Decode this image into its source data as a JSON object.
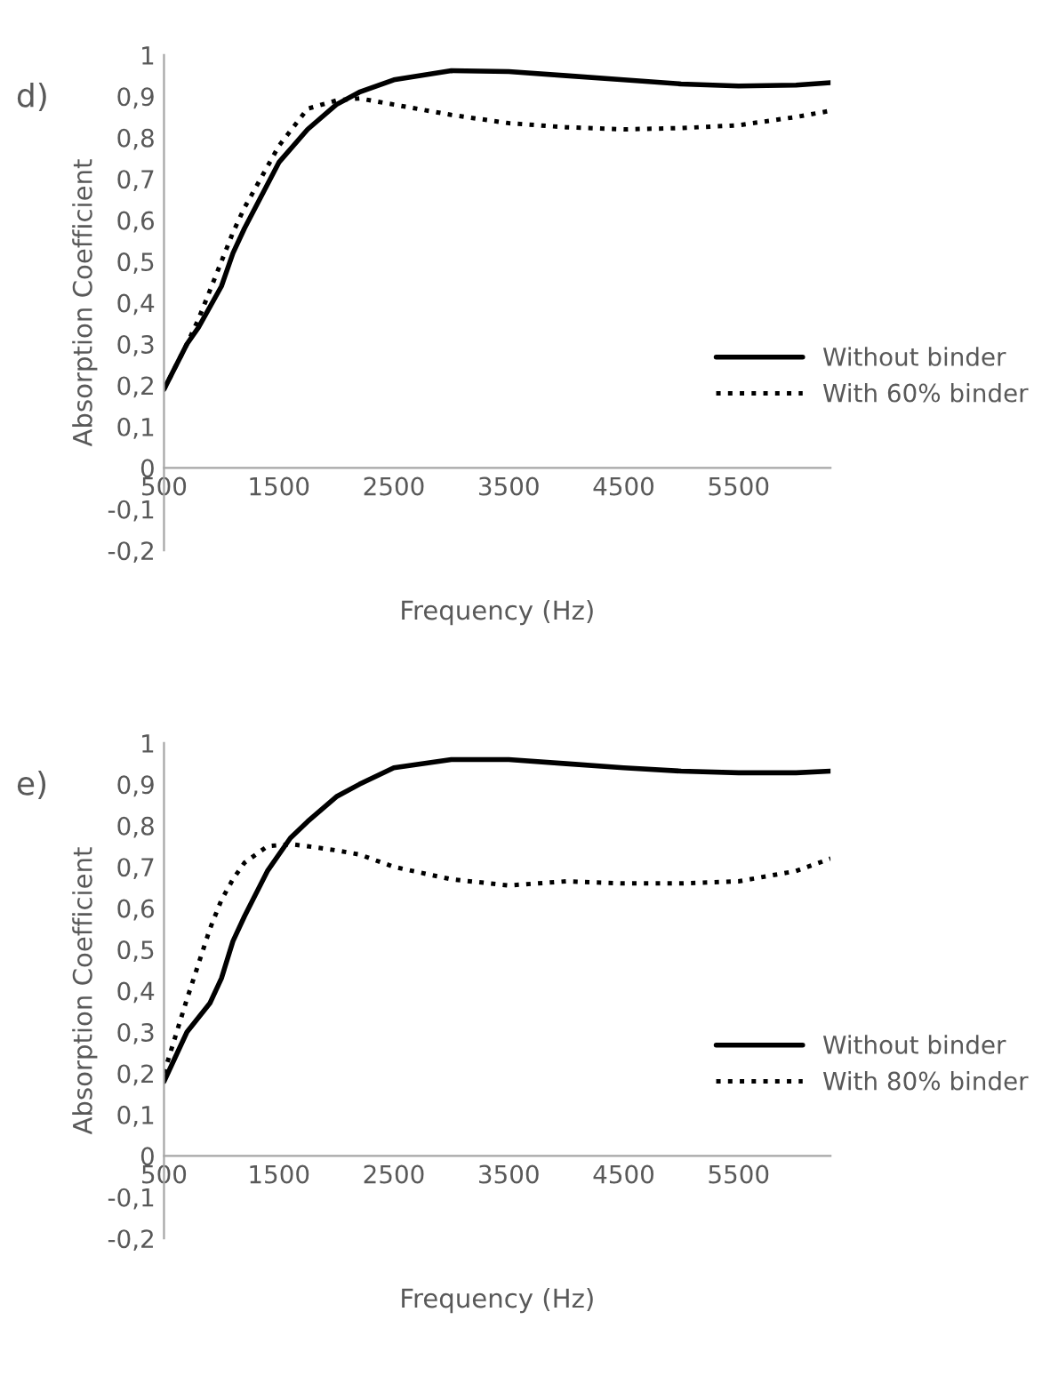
{
  "chart_data": [
    {
      "type": "line",
      "annotations": [
        "d)"
      ],
      "xlabel": "Frequency (Hz)",
      "ylabel": "Absorption Coefficient",
      "xlim": [
        500,
        6300
      ],
      "xticks": [
        500,
        1500,
        2500,
        3500,
        4500,
        5500
      ],
      "ylim": [
        -0.2,
        1
      ],
      "yticks": [
        {
          "value": -0.2,
          "label": "-0,2"
        },
        {
          "value": -0.1,
          "label": "-0,1"
        },
        0,
        {
          "value": 0.1,
          "label": "0,1"
        },
        {
          "value": 0.2,
          "label": "0,2"
        },
        {
          "value": 0.3,
          "label": "0,3"
        },
        {
          "value": 0.4,
          "label": "0,4"
        },
        {
          "value": 0.5,
          "label": "0,5"
        },
        {
          "value": 0.6,
          "label": "0,6"
        },
        {
          "value": 0.7,
          "label": "0,7"
        },
        {
          "value": 0.8,
          "label": "0,8"
        },
        {
          "value": 0.9,
          "label": "0,9"
        },
        1
      ],
      "grid": false,
      "legend": "right",
      "marker": "none",
      "x": [
        500,
        700,
        800,
        1000,
        1100,
        1200,
        1500,
        1750,
        2000,
        2200,
        2500,
        3000,
        3500,
        4000,
        4500,
        5000,
        5500,
        6000,
        6300
      ],
      "series": [
        {
          "name": "Without binder",
          "color": "#000000",
          "line_style": "solid",
          "values": [
            0.19,
            0.3,
            0.34,
            0.44,
            0.52,
            0.58,
            0.74,
            0.82,
            0.88,
            0.91,
            0.94,
            0.962,
            0.96,
            0.95,
            0.94,
            0.93,
            0.925,
            0.927,
            0.933
          ]
        },
        {
          "name": "With 60% binder",
          "color": "#000000",
          "line_style": "dotted",
          "values": [
            0.19,
            0.3,
            0.36,
            0.5,
            0.57,
            0.63,
            0.78,
            0.87,
            0.89,
            0.895,
            0.88,
            0.855,
            0.835,
            0.825,
            0.82,
            0.823,
            0.83,
            0.85,
            0.865
          ]
        }
      ]
    },
    {
      "type": "line",
      "annotations": [
        "e)"
      ],
      "xlabel": "Frequency (Hz)",
      "ylabel": "Absorption Coefficient",
      "xlim": [
        500,
        6300
      ],
      "xticks": [
        500,
        1500,
        2500,
        3500,
        4500,
        5500
      ],
      "ylim": [
        -0.2,
        1
      ],
      "yticks": [
        {
          "value": -0.2,
          "label": "-0,2"
        },
        {
          "value": -0.1,
          "label": "-0,1"
        },
        0,
        {
          "value": 0.1,
          "label": "0,1"
        },
        {
          "value": 0.2,
          "label": "0,2"
        },
        {
          "value": 0.3,
          "label": "0,3"
        },
        {
          "value": 0.4,
          "label": "0,4"
        },
        {
          "value": 0.5,
          "label": "0,5"
        },
        {
          "value": 0.6,
          "label": "0,6"
        },
        {
          "value": 0.7,
          "label": "0,7"
        },
        {
          "value": 0.8,
          "label": "0,8"
        },
        {
          "value": 0.9,
          "label": "0,9"
        },
        1
      ],
      "grid": false,
      "legend": "right",
      "marker": "none",
      "x": [
        500,
        700,
        900,
        1000,
        1100,
        1200,
        1400,
        1600,
        1750,
        2000,
        2200,
        2500,
        3000,
        3500,
        4000,
        4500,
        5000,
        5500,
        6000,
        6300
      ],
      "series": [
        {
          "name": "Without binder",
          "color": "#000000",
          "line_style": "solid",
          "values": [
            0.18,
            0.3,
            0.37,
            0.43,
            0.52,
            0.58,
            0.69,
            0.77,
            0.81,
            0.87,
            0.9,
            0.94,
            0.96,
            0.96,
            0.95,
            0.94,
            0.932,
            0.928,
            0.928,
            0.932
          ]
        },
        {
          "name": "With 80% binder",
          "color": "#000000",
          "line_style": "dotted",
          "values": [
            0.2,
            0.38,
            0.55,
            0.62,
            0.67,
            0.71,
            0.75,
            0.755,
            0.75,
            0.74,
            0.73,
            0.7,
            0.67,
            0.655,
            0.665,
            0.66,
            0.66,
            0.665,
            0.69,
            0.72
          ]
        }
      ]
    }
  ]
}
